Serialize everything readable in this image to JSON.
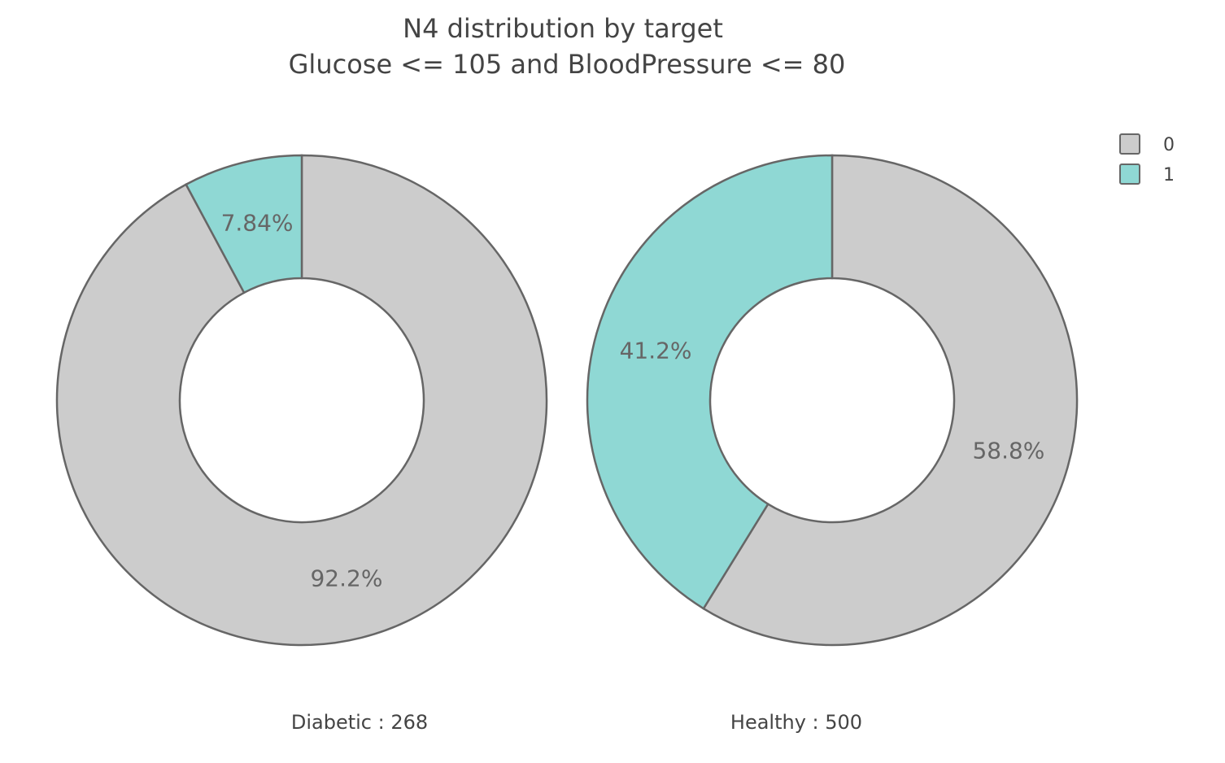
{
  "chart_data": {
    "type": "pie",
    "hole": true,
    "title": "N4 distribution by target",
    "subtitle": "Glucose <= 105 and BloodPressure <= 80",
    "legend": {
      "placement": "top-right",
      "entries": [
        {
          "label": "0",
          "color": "#cccccc"
        },
        {
          "label": "1",
          "color": "#8fd8d4"
        }
      ]
    },
    "outline_color": "#666666",
    "pies": [
      {
        "label": "Diabetic : 268",
        "slices": [
          {
            "category": "0",
            "value": 92.2,
            "text": "92.2%"
          },
          {
            "category": "1",
            "value": 7.84,
            "text": "7.84%"
          }
        ]
      },
      {
        "label": "Healthy : 500",
        "slices": [
          {
            "category": "0",
            "value": 58.8,
            "text": "58.8%"
          },
          {
            "category": "1",
            "value": 41.2,
            "text": "41.2%"
          }
        ]
      }
    ]
  }
}
